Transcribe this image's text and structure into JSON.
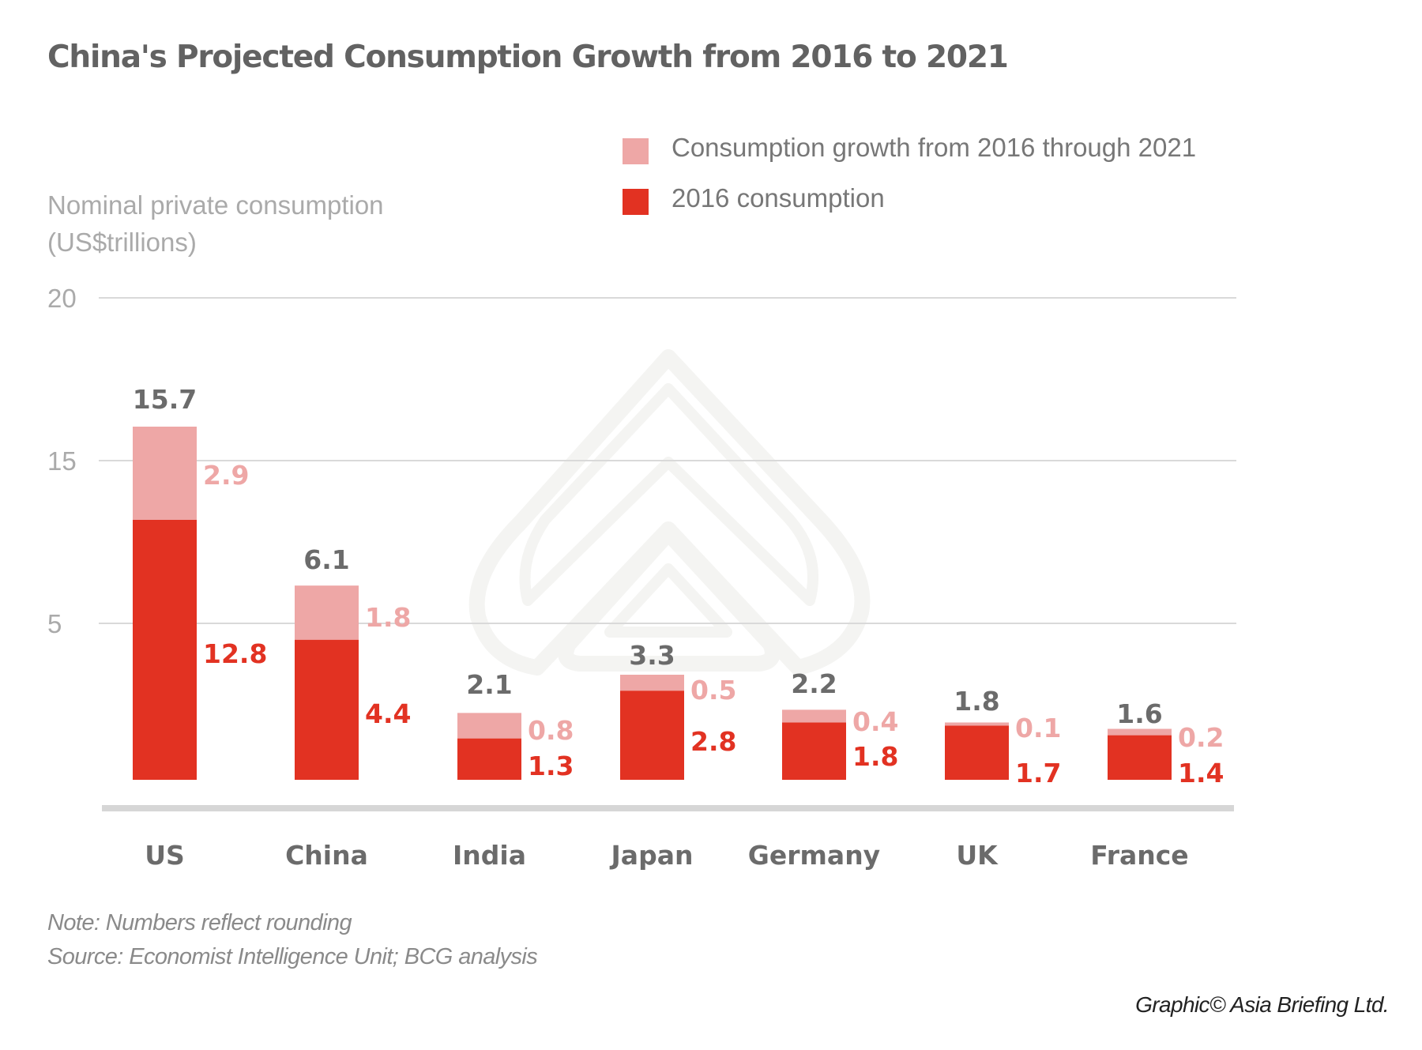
{
  "title": "China's Projected Consumption Growth from 2016 to 2021",
  "colors": {
    "growth": "#eea7a6",
    "base": "#e23222",
    "title": "#626262",
    "total_label": "#6b6b6b",
    "gridline": "#d9d9d9",
    "axis": "#d6d6d6",
    "watermark": "#f4f4f2"
  },
  "chart_data": {
    "type": "bar",
    "stacked": true,
    "title": "China's Projected Consumption Growth from 2016 to 2021",
    "ylabel": "Nominal private consumption (US$trillions)",
    "xlabel": "",
    "categories": [
      "US",
      "China",
      "India",
      "Japan",
      "Germany",
      "UK",
      "France"
    ],
    "series": [
      {
        "name": "2016 consumption",
        "values": [
          12.8,
          4.4,
          1.3,
          2.8,
          1.8,
          1.7,
          1.4
        ]
      },
      {
        "name": "Consumption growth from 2016 through 2021",
        "values": [
          2.9,
          1.8,
          0.8,
          0.5,
          0.4,
          0.1,
          0.2
        ]
      }
    ],
    "totals": [
      15.7,
      6.1,
      2.1,
      3.3,
      2.2,
      1.8,
      1.6
    ],
    "yticks": [
      "20",
      "15",
      "5"
    ],
    "ylim": [
      0,
      20
    ],
    "grid": true,
    "legend": [
      {
        "label": "Consumption growth from 2016 through 2021",
        "color": "#eea7a6"
      },
      {
        "label": "2016 consumption",
        "color": "#e23222"
      }
    ],
    "legend_position": "top-right"
  },
  "footer": {
    "note": "Note: Numbers reflect rounding",
    "source": "Source: Economist Intelligence Unit; BCG analysis",
    "credit": "Graphic© Asia Briefing Ltd."
  },
  "watermark": "asia-briefing-logo"
}
